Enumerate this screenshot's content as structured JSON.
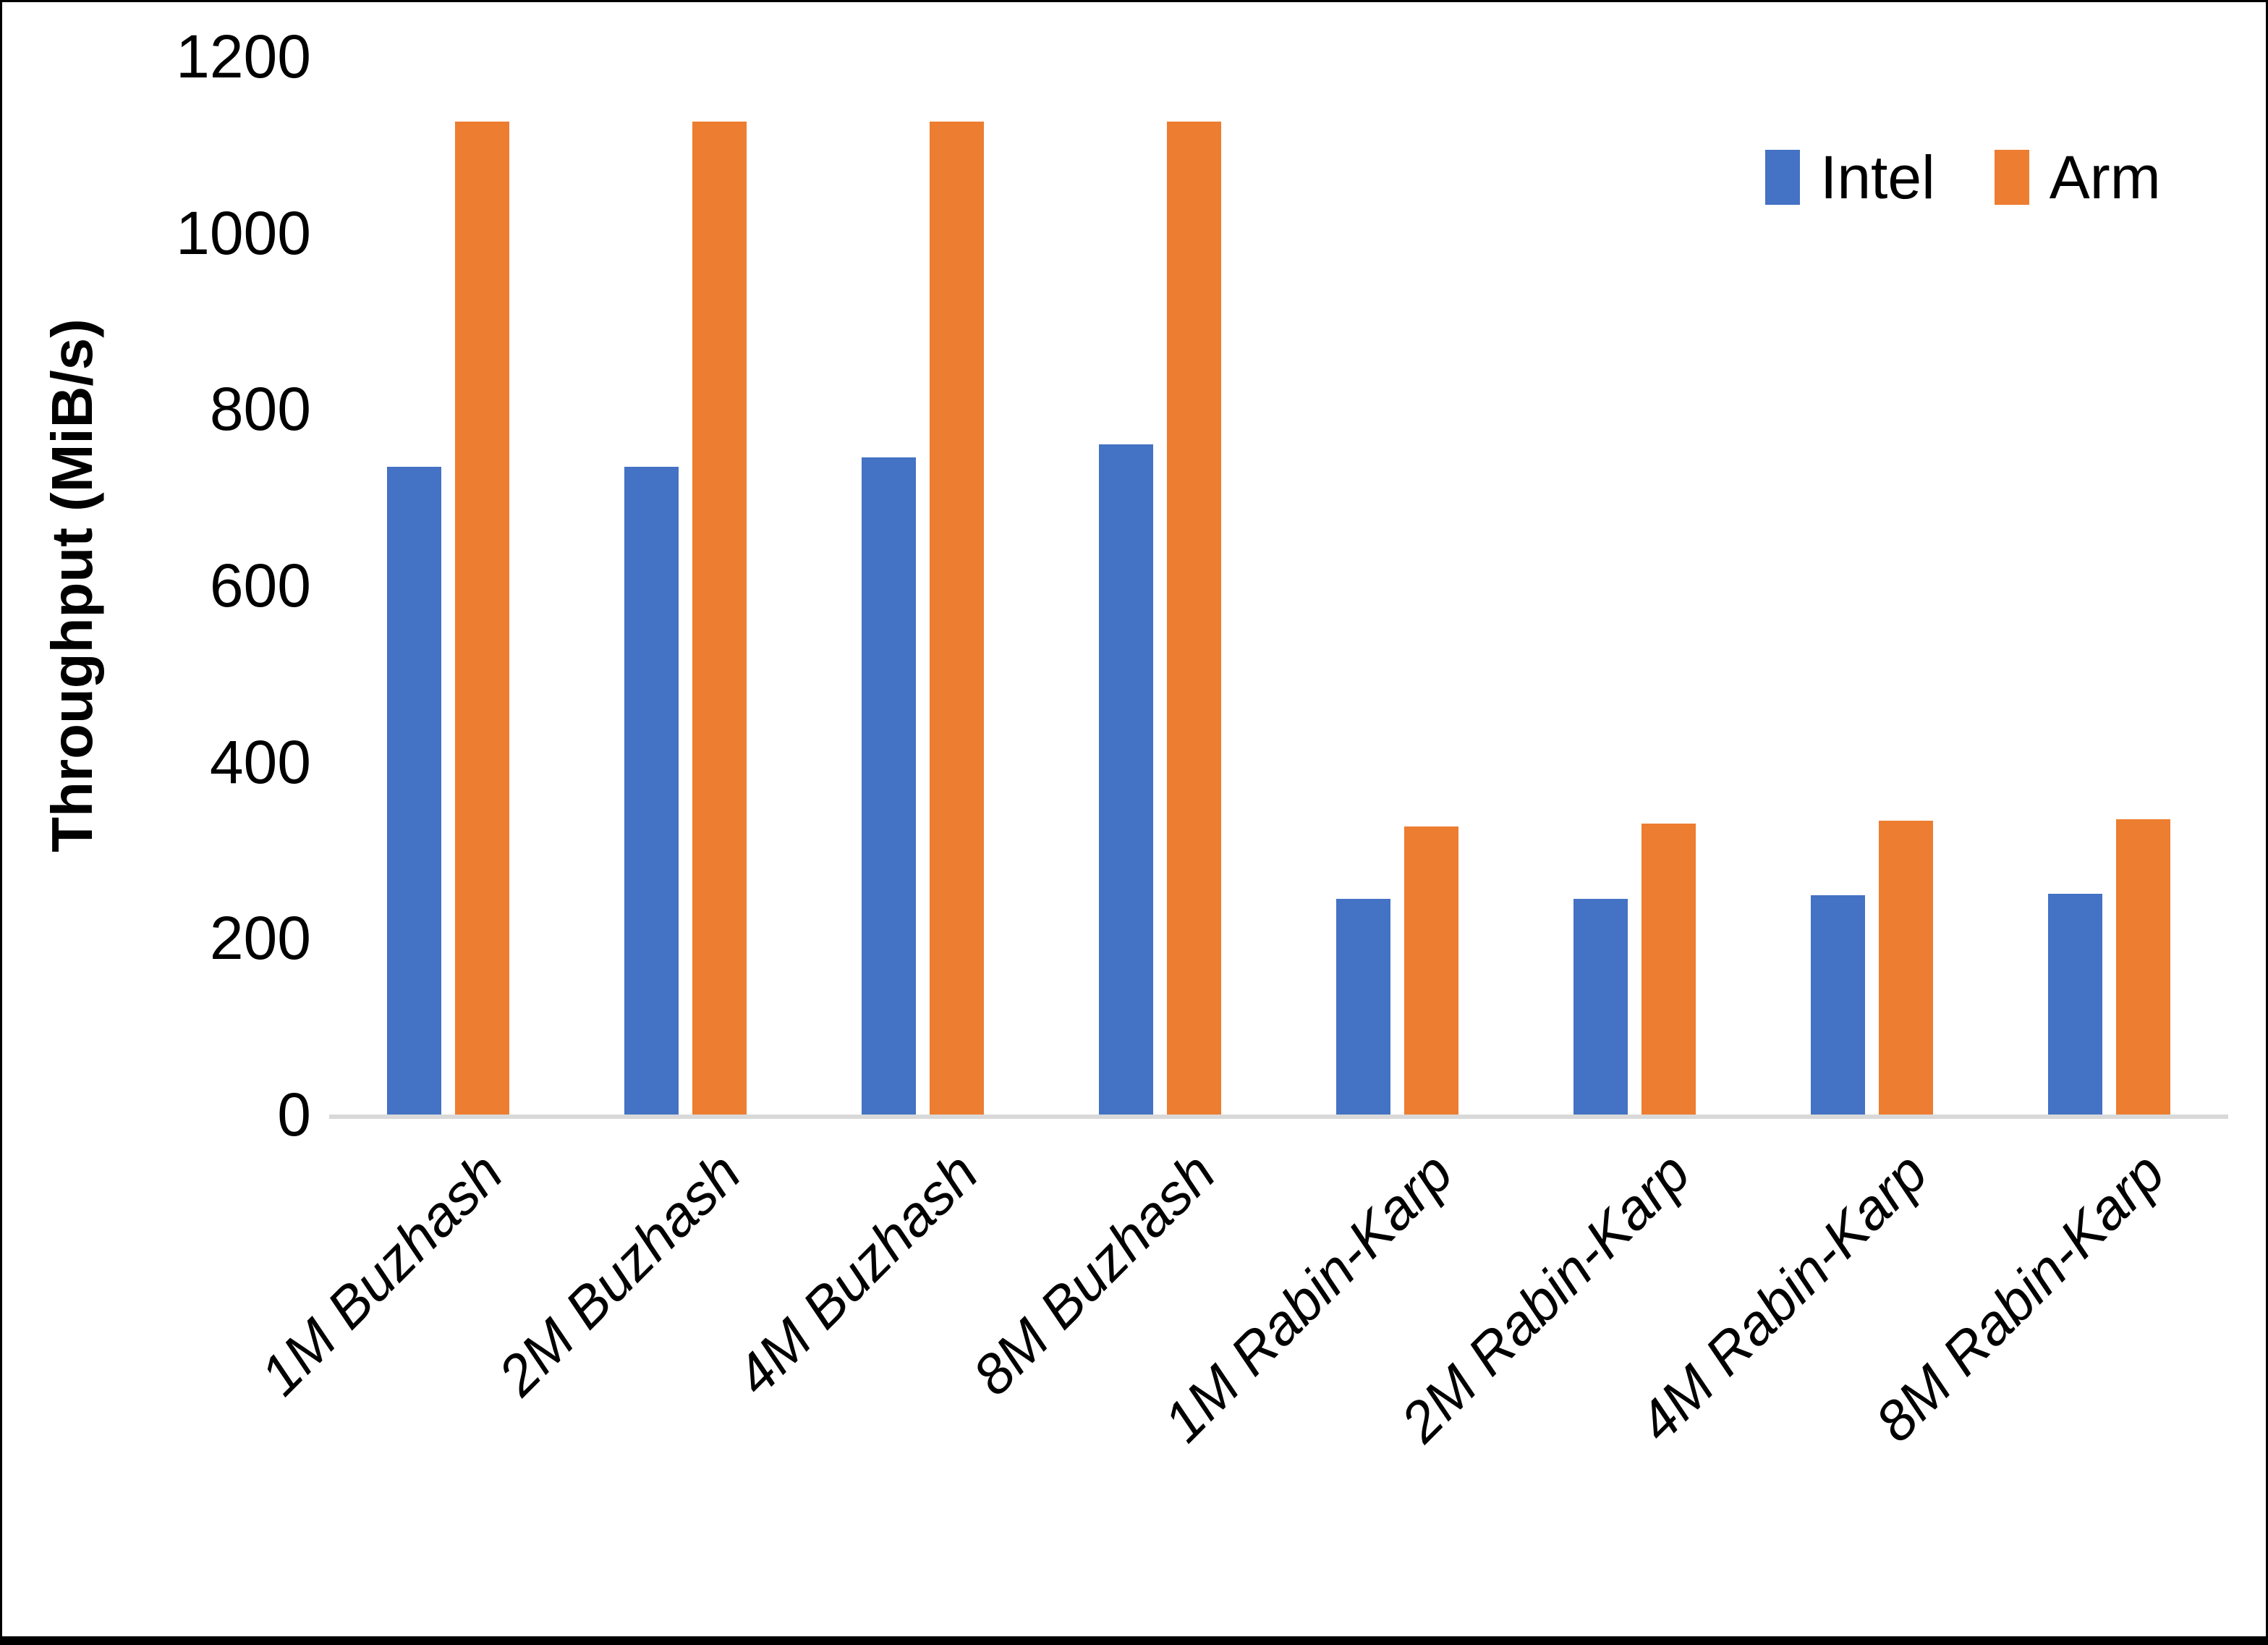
{
  "chart_data": {
    "type": "bar",
    "title": "",
    "xlabel": "",
    "ylabel": "Throughput (MiB/s)",
    "ylim": [
      0,
      1200
    ],
    "yticks": [
      0,
      200,
      400,
      600,
      800,
      1000,
      1200
    ],
    "grid": false,
    "legend_position": "top-right",
    "categories": [
      "1M Buzhash",
      "2M Buzhash",
      "4M Buzhash",
      "8M Buzhash",
      "1M Rabin-Karp",
      "2M Rabin-Karp",
      "4M Rabin-Karp",
      "8M Rabin-Karp"
    ],
    "series": [
      {
        "name": "Intel",
        "color": "#4472C4",
        "values": [
          735,
          735,
          745,
          760,
          245,
          245,
          249,
          250
        ]
      },
      {
        "name": "Arm",
        "color": "#ED7D31",
        "values": [
          1126,
          1126,
          1126,
          1126,
          327,
          330,
          333,
          335
        ]
      }
    ]
  },
  "colors": {
    "axis_line": "#d9d9d9",
    "text": "#000000",
    "background": "#ffffff"
  }
}
